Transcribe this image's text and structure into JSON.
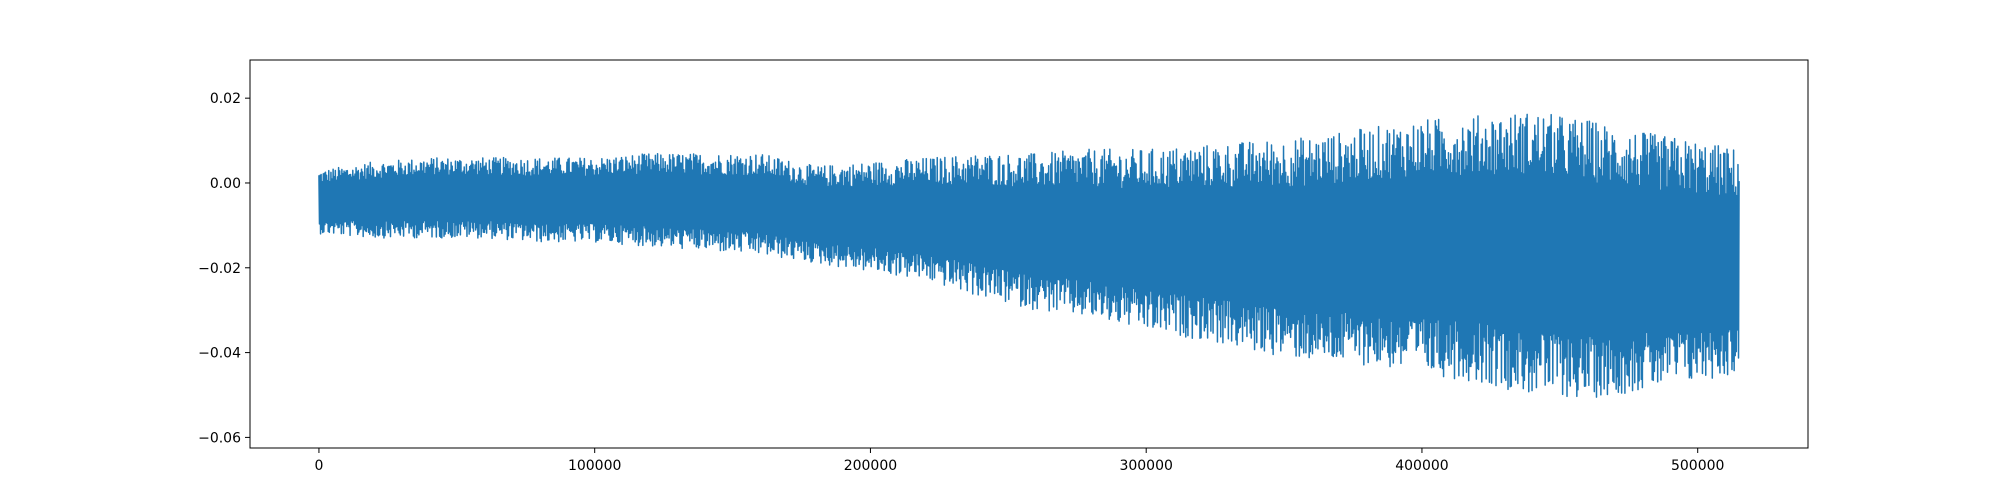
{
  "chart_data": {
    "type": "line",
    "title": "",
    "xlabel": "",
    "ylabel": "",
    "xlim": [
      -25000,
      540000
    ],
    "ylim": [
      -0.0625,
      0.029
    ],
    "x_ticks": [
      0,
      100000,
      200000,
      300000,
      400000,
      500000
    ],
    "x_tick_labels": [
      "0",
      "100000",
      "200000",
      "300000",
      "400000",
      "500000"
    ],
    "y_ticks": [
      0.02,
      0.0,
      -0.02,
      -0.04,
      -0.06
    ],
    "y_tick_labels": [
      "0.02",
      "0.00",
      "−0.02",
      "−0.04",
      "−0.06"
    ],
    "grid": false,
    "legend": "none",
    "series": [
      {
        "color": "#1f77b4",
        "x_start": 0,
        "x_end": 515000,
        "envelope": {
          "x": [
            0,
            20000,
            40000,
            60000,
            80000,
            100000,
            120000,
            140000,
            160000,
            180000,
            200000,
            220000,
            240000,
            260000,
            280000,
            300000,
            320000,
            340000,
            360000,
            380000,
            400000,
            420000,
            440000,
            460000,
            480000,
            500000,
            515000
          ],
          "upper": [
            0.003,
            0.005,
            0.006,
            0.006,
            0.006,
            0.006,
            0.007,
            0.007,
            0.007,
            0.004,
            0.005,
            0.006,
            0.007,
            0.007,
            0.008,
            0.008,
            0.009,
            0.01,
            0.011,
            0.013,
            0.015,
            0.016,
            0.017,
            0.015,
            0.012,
            0.01,
            0.008
          ],
          "lower": [
            -0.012,
            -0.013,
            -0.013,
            -0.013,
            -0.014,
            -0.014,
            -0.015,
            -0.016,
            -0.017,
            -0.019,
            -0.021,
            -0.023,
            -0.027,
            -0.03,
            -0.032,
            -0.035,
            -0.037,
            -0.04,
            -0.042,
            -0.043,
            -0.045,
            -0.047,
            -0.05,
            -0.051,
            -0.049,
            -0.047,
            -0.045
          ]
        }
      }
    ]
  }
}
